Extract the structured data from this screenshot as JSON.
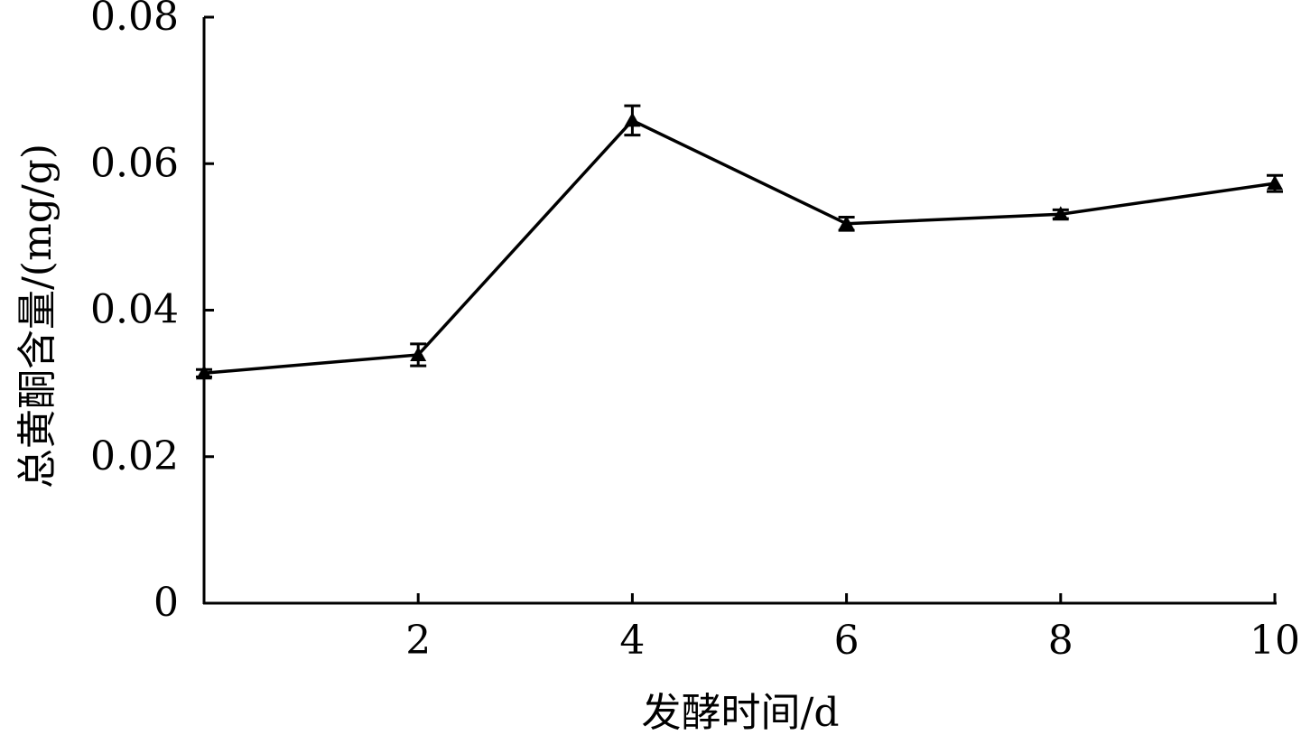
{
  "chart_data": {
    "type": "line",
    "title": "",
    "xlabel": "发酵时间/d",
    "ylabel": "总黄酮含量/(mg/g)",
    "xlim": [
      0,
      10
    ],
    "ylim": [
      0,
      0.08
    ],
    "x_ticks": [
      "2",
      "4",
      "6",
      "8",
      "10"
    ],
    "y_ticks": [
      "0",
      "0.02",
      "0.04",
      "0.06",
      "0.08"
    ],
    "grid": false,
    "marker": "triangle",
    "color": "#000000",
    "series": [
      {
        "x": [
          0,
          2,
          4,
          6,
          8,
          10
        ],
        "values": [
          0.0314,
          0.0339,
          0.0659,
          0.0518,
          0.0531,
          0.0573
        ],
        "error": [
          0.0005,
          0.0015,
          0.002,
          0.0009,
          0.0006,
          0.0011
        ]
      }
    ]
  }
}
